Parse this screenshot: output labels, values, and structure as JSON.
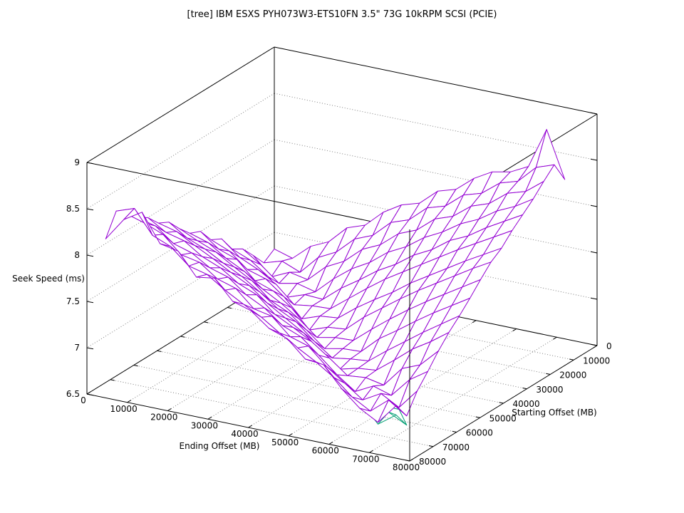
{
  "page": {
    "background": "#ffffff"
  },
  "chart_data": {
    "type": "surface3d-wireframe",
    "title": "[tree] IBM ESXS PYH073W3-ETS10FN 3.5\" 73G 10kRPM SCSI (PCIE)",
    "xlabel": "Ending Offset (MB)",
    "ylabel": "Starting Offset (MB)",
    "zlabel": "Seek Speed (ms)",
    "xlim": [
      0,
      80000
    ],
    "ylim": [
      0,
      80000
    ],
    "zlim": [
      6.5,
      9
    ],
    "x_ticks": [
      0,
      10000,
      20000,
      30000,
      40000,
      50000,
      60000,
      70000,
      80000
    ],
    "y_ticks": [
      0,
      10000,
      20000,
      30000,
      40000,
      50000,
      60000,
      70000,
      80000
    ],
    "z_ticks": [
      6.5,
      7,
      7.5,
      8,
      8.5,
      9
    ],
    "grid": true,
    "legend": "none",
    "colors": {
      "surface": "#9400d3",
      "undersurface": "#009e73",
      "border": "#000000",
      "grid": "#808080",
      "background": "#ffffff"
    },
    "surface": {
      "name": "seek-speed-mesh",
      "start_offsets_mb": [
        0,
        4500,
        9000,
        13500,
        18000,
        22500,
        27000,
        31500,
        36000,
        40500,
        45000,
        49500,
        54000,
        58500,
        63000,
        67500,
        72000
      ],
      "end_offsets_mb": [
        0,
        4500,
        9000,
        13500,
        18000,
        22500,
        27000,
        31500,
        36000,
        40500,
        45000,
        49500,
        54000,
        58500,
        63000,
        67500,
        72000
      ],
      "seek_ms_rows_by_start": [
        [
          6.82,
          6.76,
          6.93,
          7.02,
          7.21,
          7.28,
          7.46,
          7.58,
          7.64,
          7.81,
          7.87,
          8.03,
          8.14,
          8.18,
          8.28,
          8.72,
          8.22
        ],
        [
          6.74,
          6.8,
          6.72,
          6.92,
          7.02,
          7.2,
          7.28,
          7.46,
          7.53,
          7.7,
          7.76,
          7.92,
          7.98,
          8.13,
          8.19,
          8.38,
          8.45
        ],
        [
          6.89,
          6.7,
          6.79,
          6.75,
          6.93,
          7.03,
          7.2,
          7.29,
          7.45,
          7.53,
          7.69,
          7.76,
          7.91,
          7.98,
          8.13,
          8.19,
          8.34
        ],
        [
          7.03,
          6.9,
          6.74,
          6.78,
          6.73,
          6.91,
          7.06,
          7.17,
          7.32,
          7.42,
          7.56,
          7.66,
          7.79,
          7.88,
          8.01,
          8.1,
          8.22
        ],
        [
          7.1,
          7.02,
          6.88,
          6.7,
          6.77,
          6.76,
          6.92,
          7.05,
          7.19,
          7.3,
          7.44,
          7.54,
          7.68,
          7.77,
          7.9,
          8.01,
          8.12
        ],
        [
          7.28,
          7.12,
          7.03,
          6.91,
          6.73,
          6.76,
          6.77,
          6.92,
          7.07,
          7.21,
          7.33,
          7.45,
          7.57,
          7.69,
          7.8,
          7.91,
          8.02
        ],
        [
          7.34,
          7.26,
          7.1,
          7.04,
          6.89,
          6.69,
          6.76,
          6.78,
          6.93,
          7.06,
          7.18,
          7.32,
          7.44,
          7.56,
          7.68,
          7.79,
          7.9
        ],
        [
          7.5,
          7.35,
          7.28,
          7.09,
          7.02,
          6.88,
          6.68,
          6.75,
          6.77,
          6.94,
          7.08,
          7.22,
          7.35,
          7.47,
          7.59,
          7.71,
          7.82
        ],
        [
          7.55,
          7.49,
          7.36,
          7.26,
          7.11,
          7.0,
          6.87,
          6.71,
          6.75,
          6.76,
          6.92,
          7.07,
          7.21,
          7.34,
          7.46,
          7.58,
          7.7
        ],
        [
          7.67,
          7.58,
          7.5,
          7.38,
          7.27,
          7.1,
          7.01,
          6.86,
          6.7,
          6.74,
          6.75,
          6.93,
          7.06,
          7.2,
          7.33,
          7.45,
          7.57
        ],
        [
          7.81,
          7.68,
          7.6,
          7.49,
          7.39,
          7.26,
          7.12,
          7.02,
          6.85,
          6.71,
          6.74,
          6.76,
          6.91,
          7.05,
          7.19,
          7.32,
          7.45
        ],
        [
          7.87,
          7.82,
          7.71,
          7.61,
          7.5,
          7.4,
          7.25,
          7.13,
          7.01,
          6.84,
          6.7,
          6.75,
          6.77,
          6.92,
          7.08,
          7.2,
          7.34
        ],
        [
          8.0,
          7.88,
          7.83,
          7.7,
          7.62,
          7.49,
          7.41,
          7.24,
          7.14,
          7.03,
          6.89,
          6.74,
          6.76,
          6.72,
          6.94,
          7.02,
          7.21
        ],
        [
          8.07,
          8.02,
          7.87,
          7.81,
          7.69,
          7.63,
          7.48,
          7.38,
          7.23,
          7.15,
          6.99,
          6.82,
          6.68,
          6.78,
          6.72,
          6.93,
          7.06
        ],
        [
          8.18,
          8.12,
          8.04,
          7.86,
          7.82,
          7.68,
          7.62,
          7.44,
          7.4,
          7.22,
          7.16,
          6.98,
          6.84,
          6.7,
          6.81,
          6.7,
          6.92
        ],
        [
          8.28,
          8.35,
          8.1,
          8.02,
          7.85,
          7.8,
          7.67,
          7.56,
          7.46,
          7.33,
          7.21,
          7.1,
          6.97,
          6.8,
          6.69,
          6.85,
          6.72
        ],
        [
          8.05,
          8.3,
          8.42,
          8.12,
          8.08,
          7.84,
          7.87,
          7.66,
          7.6,
          7.45,
          7.38,
          7.2,
          7.18,
          6.96,
          6.79,
          6.68,
          6.9
        ]
      ]
    },
    "undersurface_polylines_end_start_ms": [
      [
        [
          49500,
          49500,
          6.64
        ],
        [
          54000,
          54000,
          6.64
        ],
        [
          58500,
          58500,
          6.66
        ],
        [
          63000,
          63000,
          6.68
        ],
        [
          67500,
          67500,
          6.72
        ],
        [
          72000,
          72000,
          6.8
        ]
      ],
      [
        [
          58500,
          63000,
          6.7
        ],
        [
          63000,
          67500,
          6.66
        ],
        [
          67500,
          72000,
          6.66
        ],
        [
          72000,
          72000,
          6.8
        ]
      ],
      [
        [
          63000,
          58500,
          6.72
        ],
        [
          67500,
          63000,
          6.68
        ],
        [
          72000,
          67500,
          6.62
        ],
        [
          72000,
          72000,
          6.8
        ]
      ],
      [
        [
          63000,
          63000,
          6.68
        ],
        [
          67500,
          63000,
          6.68
        ]
      ],
      [
        [
          63000,
          63000,
          6.68
        ],
        [
          63000,
          67500,
          6.66
        ]
      ],
      [
        [
          67500,
          67500,
          6.72
        ],
        [
          72000,
          67500,
          6.62
        ]
      ],
      [
        [
          67500,
          67500,
          6.72
        ],
        [
          67500,
          72000,
          6.66
        ]
      ],
      [
        [
          22500,
          33750,
          7.05
        ],
        [
          24750,
          34650,
          6.58
        ],
        [
          27000,
          36000,
          7.02
        ]
      ]
    ]
  }
}
